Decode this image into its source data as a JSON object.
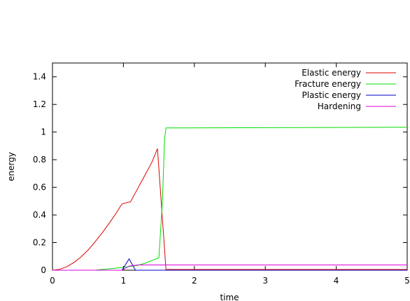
{
  "chart_data": {
    "type": "line",
    "title": "",
    "xlabel": "time",
    "ylabel": "energy",
    "xlim": [
      0,
      5
    ],
    "ylim": [
      0,
      1.5
    ],
    "xticks": [
      0,
      1,
      2,
      3,
      4,
      5
    ],
    "xtick_labels": [
      "0",
      "1",
      "2",
      "3",
      "4",
      "5"
    ],
    "yticks": [
      0,
      0.2,
      0.4,
      0.6,
      0.8,
      1.0,
      1.2,
      1.4
    ],
    "ytick_labels": [
      "0",
      "0.2",
      "0.4",
      "0.6",
      "0.8",
      "1",
      "1.2",
      "1.4"
    ],
    "grid": false,
    "legend_position": "top-right",
    "series": [
      {
        "name": "Elastic energy",
        "color": "#dd0000",
        "x": [
          0,
          0.1,
          0.2,
          0.3,
          0.4,
          0.5,
          0.6,
          0.7,
          0.8,
          0.9,
          0.98,
          1.1,
          1.2,
          1.3,
          1.4,
          1.48,
          1.6,
          2.0,
          5.0
        ],
        "y": [
          0,
          0.006,
          0.025,
          0.055,
          0.095,
          0.145,
          0.205,
          0.27,
          0.34,
          0.415,
          0.48,
          0.495,
          0.59,
          0.685,
          0.78,
          0.88,
          0.005,
          0.005,
          0.005
        ]
      },
      {
        "name": "Fracture energy",
        "color": "#00dd00",
        "x": [
          0,
          0.6,
          1.0,
          1.2,
          1.3,
          1.4,
          1.5,
          1.55,
          1.58,
          1.6,
          5.0
        ],
        "y": [
          0,
          0.0,
          0.02,
          0.035,
          0.05,
          0.07,
          0.09,
          0.5,
          0.95,
          1.03,
          1.035
        ]
      },
      {
        "name": "Plastic energy",
        "color": "#0000cc",
        "x": [
          0,
          0.98,
          1.08,
          1.17,
          5.0
        ],
        "y": [
          0,
          0.0,
          0.082,
          0.0,
          0.0
        ]
      },
      {
        "name": "Hardening",
        "color": "#dd00dd",
        "x": [
          0,
          0.98,
          1.08,
          1.2,
          1.6,
          5.0
        ],
        "y": [
          0,
          0.0,
          0.03,
          0.038,
          0.038,
          0.038
        ]
      }
    ]
  }
}
